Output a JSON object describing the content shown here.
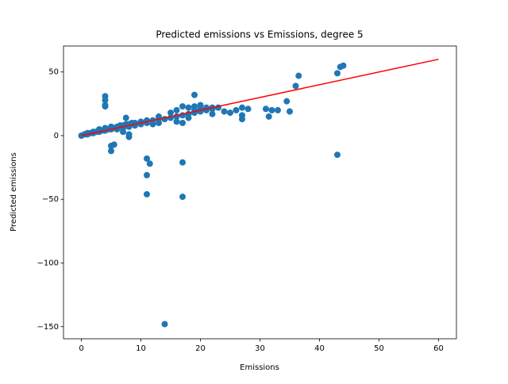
{
  "chart_data": {
    "type": "scatter",
    "title": "Predicted emissions vs Emissions, degree 5",
    "x_label": "Emissions",
    "y_label": "Predicted emissions",
    "xlim": [
      -3,
      63
    ],
    "ylim": [
      -159.5,
      70.4
    ],
    "xticks": [
      0,
      10,
      20,
      30,
      40,
      50,
      60
    ],
    "yticks": [
      {
        "value": -150,
        "label": "−150"
      },
      {
        "value": -100,
        "label": "−100"
      },
      {
        "value": -50,
        "label": "−50"
      },
      0,
      50
    ],
    "series": [
      {
        "kind": "scatter",
        "color": "#1f77b4",
        "x": [
          0,
          0.5,
          1,
          1,
          1.5,
          2,
          2,
          2.5,
          3,
          3,
          3.5,
          4,
          4,
          4.5,
          5,
          5,
          5.5,
          6,
          6,
          6.5,
          7,
          7,
          7.5,
          8,
          8,
          8.5,
          9,
          9,
          10,
          10,
          11,
          11,
          12,
          12,
          13,
          13,
          14,
          15,
          16,
          16,
          17,
          17,
          18,
          18,
          19,
          19,
          20,
          20,
          21,
          22,
          4,
          4,
          4,
          4,
          5,
          5,
          5.5,
          11,
          11.5,
          11,
          11,
          17,
          17,
          14,
          43,
          43,
          43.5,
          44,
          36.5,
          36,
          34.5,
          35,
          33,
          31.5,
          31,
          32,
          27,
          27,
          27,
          28,
          26,
          25,
          24,
          22,
          19,
          17,
          18,
          19,
          20,
          21,
          22,
          23,
          16,
          15,
          13,
          7.5,
          7,
          8,
          8
        ],
        "y": [
          0,
          1,
          1,
          2,
          2,
          2,
          3,
          3,
          3,
          5,
          4,
          4,
          6,
          5,
          5,
          7,
          6,
          7,
          5,
          8,
          8,
          6,
          9,
          9,
          7,
          10,
          10,
          8,
          11,
          9,
          12,
          10,
          12,
          9,
          10,
          13,
          13,
          14,
          15,
          11,
          16,
          10,
          14,
          17,
          18,
          20,
          19,
          21,
          20,
          21,
          31,
          28,
          24,
          23,
          -12,
          -8,
          -7,
          -18,
          -22,
          -31,
          -46,
          -21,
          -48,
          -148,
          -15,
          49,
          54,
          55,
          47,
          39,
          27,
          19,
          20,
          15,
          21,
          20,
          13,
          16,
          22,
          21,
          20,
          18,
          19,
          17,
          32,
          23,
          22,
          23,
          24,
          22,
          22,
          22,
          20,
          18,
          15,
          14,
          3,
          -1,
          1
        ]
      },
      {
        "kind": "line",
        "color": "#ff0000",
        "x": [
          0,
          60
        ],
        "y": [
          0,
          60
        ]
      }
    ]
  }
}
